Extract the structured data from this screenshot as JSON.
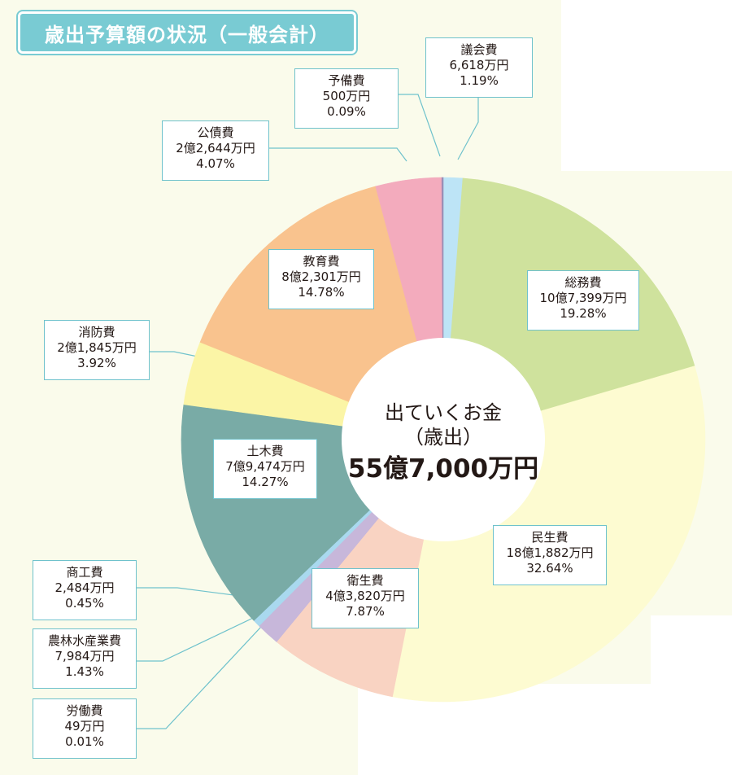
{
  "title": "歳出予算額の状況（一般会計）",
  "center": {
    "line1": "出ていくお金",
    "line2": "（歳出）",
    "total": "55億7,000万円"
  },
  "colors": {
    "background": "#fafbeb",
    "title_badge": "#79cbd3",
    "leader_line": "#6fc2cc"
  },
  "chart_data": {
    "type": "pie",
    "variant": "donut",
    "title": "歳出予算額の状況（一般会計）",
    "total_label": "55億7,000万円",
    "slices": [
      {
        "name": "議会費",
        "amount": "6,618万円",
        "amount_man_yen": 6618,
        "percent": 1.19,
        "percent_label": "1.19%",
        "color": "#bde4f6"
      },
      {
        "name": "総務費",
        "amount": "10億7,399万円",
        "amount_man_yen": 107399,
        "percent": 19.28,
        "percent_label": "19.28%",
        "color": "#cfe29d"
      },
      {
        "name": "民生費",
        "amount": "18億1,882万円",
        "amount_man_yen": 181882,
        "percent": 32.64,
        "percent_label": "32.64%",
        "color": "#fdfbd1"
      },
      {
        "name": "衛生費",
        "amount": "4億3,820万円",
        "amount_man_yen": 43820,
        "percent": 7.87,
        "percent_label": "7.87%",
        "color": "#f9d3c2"
      },
      {
        "name": "労働費",
        "amount": "49万円",
        "amount_man_yen": 49,
        "percent": 0.01,
        "percent_label": "0.01%",
        "color": "#c7b7da"
      },
      {
        "name": "農林水産業費",
        "amount": "7,984万円",
        "amount_man_yen": 7984,
        "percent": 1.43,
        "percent_label": "1.43%",
        "color": "#c7b7da"
      },
      {
        "name": "商工費",
        "amount": "2,484万円",
        "amount_man_yen": 2484,
        "percent": 0.45,
        "percent_label": "0.45%",
        "color": "#a9d9ef"
      },
      {
        "name": "土木費",
        "amount": "7億9,474万円",
        "amount_man_yen": 79474,
        "percent": 14.27,
        "percent_label": "14.27%",
        "color": "#79aba6"
      },
      {
        "name": "消防費",
        "amount": "2億1,845万円",
        "amount_man_yen": 21845,
        "percent": 3.92,
        "percent_label": "3.92%",
        "color": "#fbf5a6"
      },
      {
        "name": "教育費",
        "amount": "8億2,301万円",
        "amount_man_yen": 82301,
        "percent": 14.78,
        "percent_label": "14.78%",
        "color": "#f9c38e"
      },
      {
        "name": "公債費",
        "amount": "2億2,644万円",
        "amount_man_yen": 22644,
        "percent": 4.07,
        "percent_label": "4.07%",
        "color": "#f3abbd"
      },
      {
        "name": "予備費",
        "amount": "500万円",
        "amount_man_yen": 500,
        "percent": 0.09,
        "percent_label": "0.09%",
        "color": "#9b8fb5"
      }
    ]
  }
}
